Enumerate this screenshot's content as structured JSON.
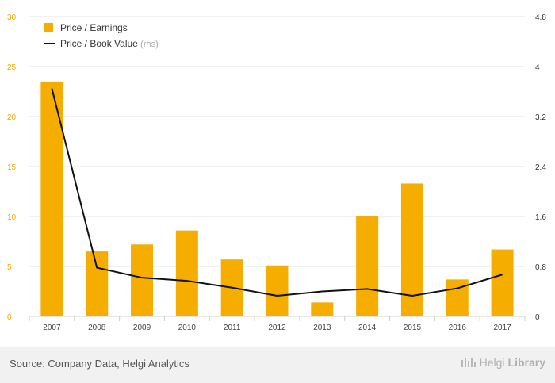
{
  "chart_data": {
    "type": "bar",
    "categories": [
      "2007",
      "2008",
      "2009",
      "2010",
      "2011",
      "2012",
      "2013",
      "2014",
      "2015",
      "2016",
      "2017"
    ],
    "series": [
      {
        "name": "Price / Earnings",
        "type": "bar",
        "axis": "left",
        "color": "#f5ad00",
        "values": [
          23.5,
          6.5,
          7.2,
          8.6,
          5.7,
          5.1,
          1.4,
          10.0,
          13.3,
          3.7,
          6.7
        ]
      },
      {
        "name": "Price / Book Value",
        "type": "line",
        "axis": "right",
        "color": "#111111",
        "values": [
          3.65,
          0.78,
          0.62,
          0.57,
          0.46,
          0.33,
          0.4,
          0.44,
          0.33,
          0.45,
          0.67
        ]
      }
    ],
    "ylim_left": [
      0,
      30
    ],
    "yticks_left": [
      "0",
      "5",
      "10",
      "15",
      "20",
      "25",
      "30"
    ],
    "ylim_right": [
      0,
      4.8
    ],
    "yticks_right": [
      "0",
      "0.8",
      "1.6",
      "2.4",
      "3.2",
      "4",
      "4.8"
    ],
    "grid": true
  },
  "legend": {
    "bar_label": "Price / Earnings",
    "line_label": "Price / Book Value",
    "line_suffix": "(rhs)"
  },
  "footer": {
    "source": "Source: Company Data, Helgi Analytics",
    "brand_light": "Helgi",
    "brand_bold": "Library"
  }
}
